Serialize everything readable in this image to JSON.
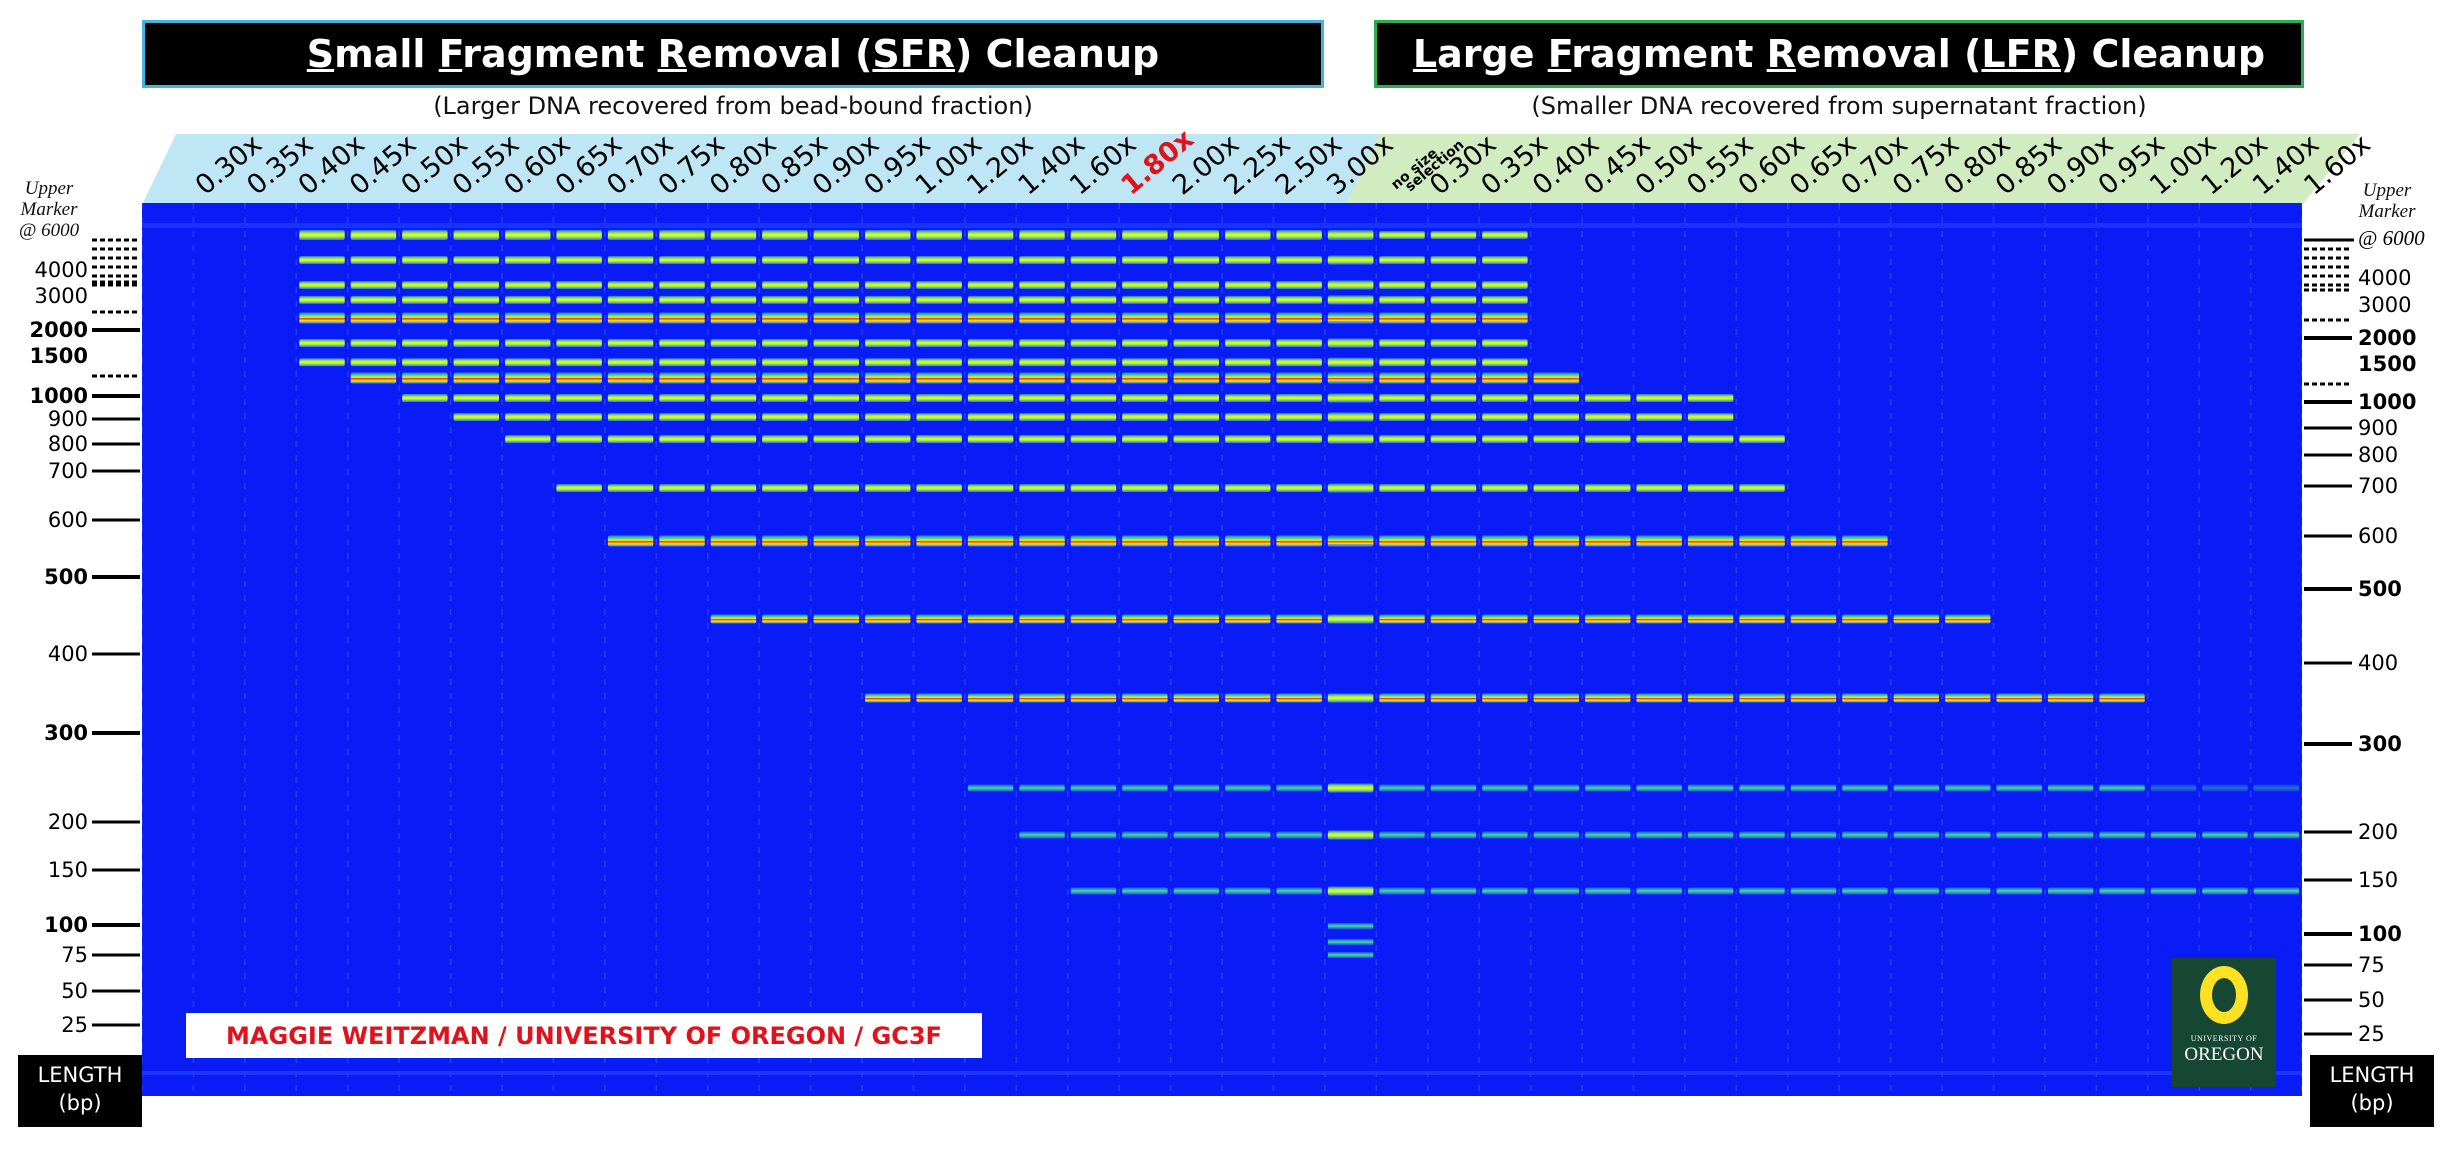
{
  "sfr": {
    "title_parts": [
      {
        "t": "S",
        "u": true
      },
      {
        "t": "mall ",
        "u": false
      },
      {
        "t": "F",
        "u": true
      },
      {
        "t": "ragment ",
        "u": false
      },
      {
        "t": "R",
        "u": true
      },
      {
        "t": "emoval (",
        "u": false
      },
      {
        "t": "SFR",
        "u": true
      },
      {
        "t": ") Cleanup",
        "u": false
      }
    ],
    "subtitle": "(Larger DNA recovered from bead-bound fraction)"
  },
  "lfr": {
    "title_parts": [
      {
        "t": "L",
        "u": true
      },
      {
        "t": "arge ",
        "u": false
      },
      {
        "t": "F",
        "u": true
      },
      {
        "t": "ragment ",
        "u": false
      },
      {
        "t": "R",
        "u": true
      },
      {
        "t": "emoval (",
        "u": false
      },
      {
        "t": "LFR",
        "u": true
      },
      {
        "t": ") Cleanup",
        "u": false
      }
    ],
    "subtitle": "(Smaller DNA recovered from supernatant fraction)"
  },
  "lanes": {
    "sfr": [
      "0.30x",
      "0.35x",
      "0.40x",
      "0.45x",
      "0.50x",
      "0.55x",
      "0.60x",
      "0.65x",
      "0.70x",
      "0.75x",
      "0.80x",
      "0.85x",
      "0.90x",
      "0.95x",
      "1.00x",
      "1.20x",
      "1.40x",
      "1.60x",
      "1.80x",
      "2.00x",
      "2.25x",
      "2.50x",
      "3.00x"
    ],
    "highlight": "1.80x",
    "none_label_1": "no size",
    "none_label_2": "selection",
    "lfr": [
      "0.30x",
      "0.35x",
      "0.40x",
      "0.45x",
      "0.50x",
      "0.55x",
      "0.60x",
      "0.65x",
      "0.70x",
      "0.75x",
      "0.80x",
      "0.85x",
      "0.90x",
      "0.95x",
      "1.00x",
      "1.20x",
      "1.40x",
      "1.60x"
    ]
  },
  "ladder": {
    "title_lines": [
      "Upper",
      "Marker"
    ],
    "upper_left": "@ 6000",
    "upper_right": "@ 6000",
    "sizes": [
      "4000",
      "3000",
      "2000",
      "1500",
      "1000",
      "900",
      "800",
      "700",
      "600",
      "500",
      "400",
      "300",
      "200",
      "150",
      "100",
      "75",
      "50",
      "25"
    ],
    "bold": [
      "2000",
      "1500",
      "1000",
      "500",
      "300",
      "100"
    ]
  },
  "length_box": {
    "line1": "LENGTH",
    "line2": "(bp)"
  },
  "credit": "MAGGIE WEITZMAN / UNIVERSITY OF OREGON / GC3F",
  "logo": {
    "small": "UNIVERSITY OF",
    "big": "OREGON"
  },
  "colors": {
    "gel": "#0a1cf5",
    "sfr_accent": "#bfe6f5",
    "lfr_accent": "#d2ecc1",
    "highlight": "#e0121c"
  }
}
